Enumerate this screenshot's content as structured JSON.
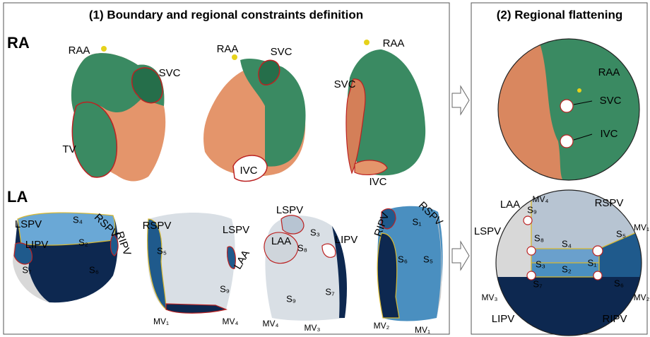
{
  "panel1": {
    "title": "(1) Boundary and regional constraints definition",
    "ra": {
      "label": "RA",
      "labels": [
        "RAA",
        "SVC",
        "TV",
        "RAA",
        "SVC",
        "IVC",
        "RAA",
        "SVC",
        "IVC"
      ]
    },
    "la": {
      "label": "LA",
      "labels": [
        "LSPV",
        "RSPV",
        "RIPV",
        "LIPV",
        "S₄",
        "S₂",
        "S₇",
        "S₆",
        "RSPV",
        "LSPV",
        "LAA",
        "S₅",
        "S₉",
        "MV₁",
        "MV₄",
        "LSPV",
        "LIPV",
        "LAA",
        "S₃",
        "S₈",
        "S₉",
        "S₇",
        "MV₄",
        "MV₃",
        "RIPV",
        "RSPV",
        "S₁",
        "S₆",
        "S₅",
        "MV₂",
        "MV₁"
      ]
    }
  },
  "panel2": {
    "title": "(2) Regional flattening",
    "ra_labels": [
      "RAA",
      "SVC",
      "IVC"
    ],
    "la_labels": [
      "MV₄",
      "LAA",
      "S₉",
      "RSPV",
      "MV₁",
      "LSPV",
      "S₈",
      "S₅",
      "S₄",
      "S₁",
      "S₃",
      "S₂",
      "S₇",
      "S₆",
      "MV₃",
      "MV₂",
      "LIPV",
      "RIPV"
    ]
  }
}
